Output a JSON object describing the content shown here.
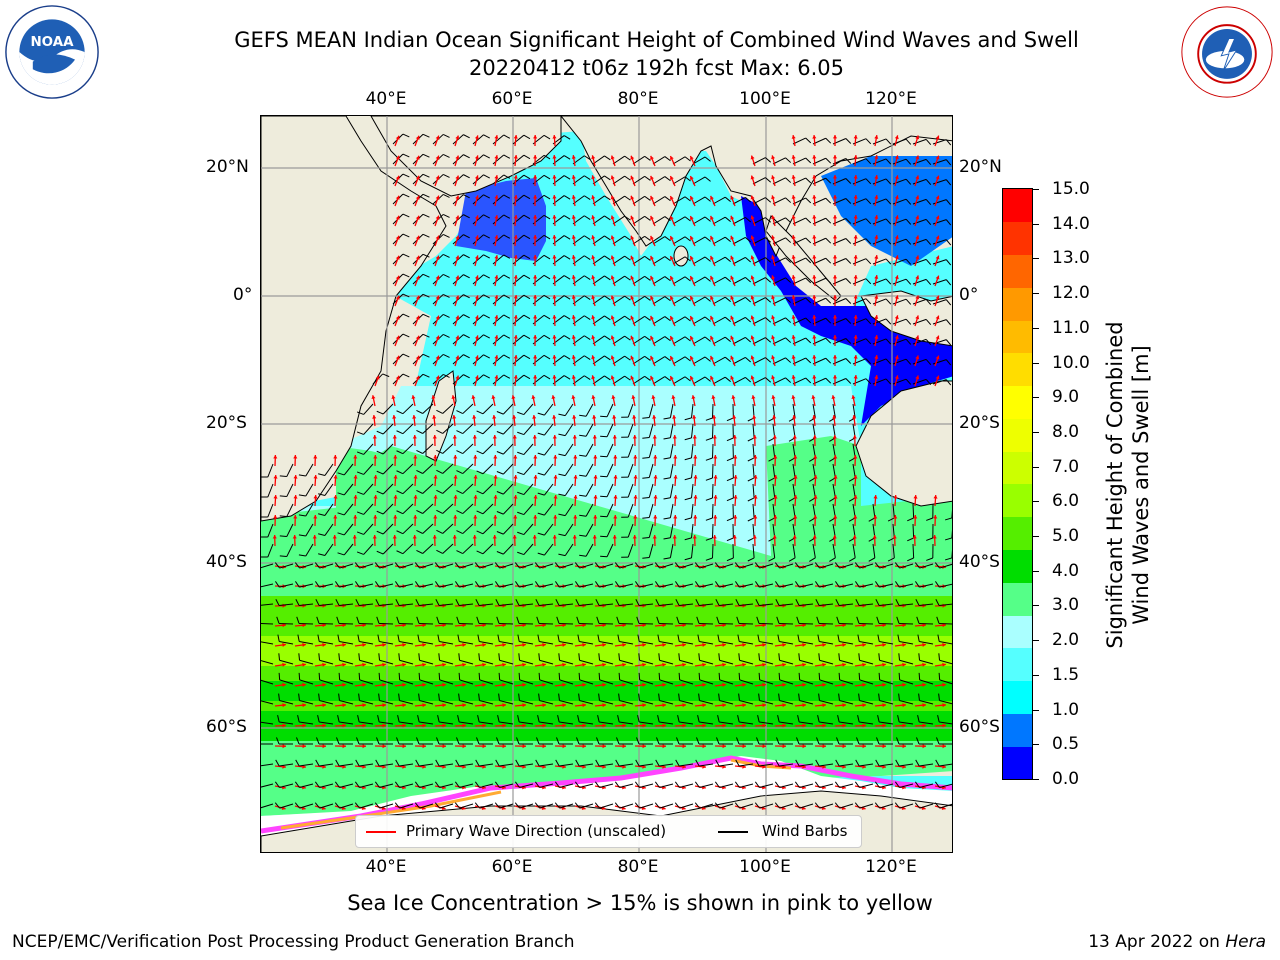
{
  "title_line1": "GEFS MEAN Indian Ocean Significant Height of Combined Wind Waves and Swell",
  "title_line2": "20220412 t06z 192h fcst   Max: 6.05",
  "logos": {
    "left": "NOAA",
    "right": "NATIONAL WEATHER SERVICE"
  },
  "map": {
    "lon_ticks": [
      "40°E",
      "60°E",
      "80°E",
      "100°E",
      "120°E"
    ],
    "lat_ticks_left": [
      "20°N",
      "0°",
      "20°S",
      "40°S",
      "60°S"
    ],
    "lat_ticks_right": [
      "20°N",
      "0°",
      "20°S",
      "40°S",
      "60°S"
    ],
    "lon_range": [
      20,
      130
    ],
    "lat_range": [
      -72,
      28
    ],
    "colors": {
      "land": "#eeecdc",
      "wave_arrow": "#ff0000",
      "wind_barb": "#000000"
    }
  },
  "colorbar": {
    "title_line1": "Significant Height of Combined",
    "title_line2": "Wind Waves and Swell [m]",
    "tick_labels": [
      "15.0",
      "14.0",
      "13.0",
      "12.0",
      "11.0",
      "10.0",
      "9.0",
      "8.0",
      "7.0",
      "6.0",
      "5.0",
      "4.0",
      "3.0",
      "2.0",
      "1.5",
      "1.0",
      "0.5",
      "0.0"
    ],
    "colors_bottom_to_top": [
      "#0000ff",
      "#0077ff",
      "#00ffff",
      "#55ffff",
      "#aaffff",
      "#55ff88",
      "#00dd00",
      "#55ee00",
      "#99ff00",
      "#ccff00",
      "#eeff00",
      "#ffff00",
      "#ffdd00",
      "#ffbb00",
      "#ff9900",
      "#ff6600",
      "#ff3300",
      "#ff0000"
    ]
  },
  "legend": {
    "primary_wave": "Primary Wave Direction (unscaled)",
    "wind_barbs": "Wind Barbs"
  },
  "footnote": "Sea Ice Concentration > 15% is shown in pink to yellow",
  "credit_left": "NCEP/EMC/Verification Post Processing Product Generation Branch",
  "credit_right_prefix": "13 Apr 2022 on ",
  "credit_right_host": "Hera"
}
